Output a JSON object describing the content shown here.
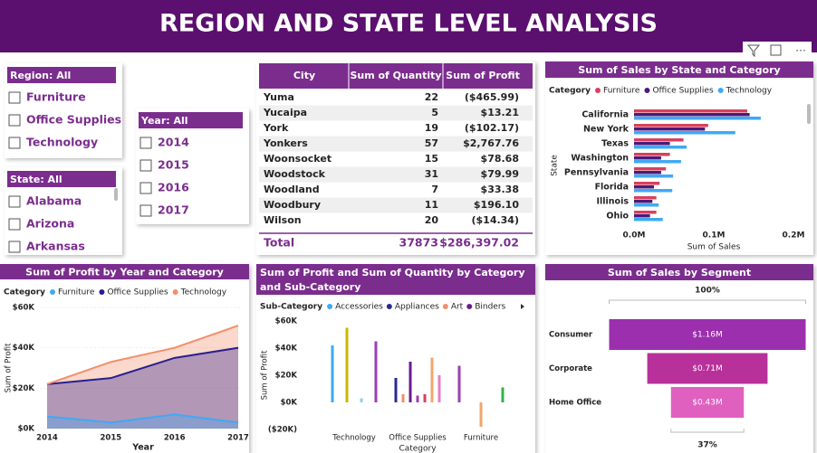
{
  "header": {
    "title": "REGION AND STATE LEVEL ANALYSIS"
  },
  "slicers": [
    {
      "title": "Region: All",
      "items": [
        "Furniture",
        "Office Supplies",
        "Technology"
      ]
    },
    {
      "title": "State: All",
      "items": [
        "Alabama",
        "Arizona",
        "Arkansas"
      ]
    },
    {
      "title": "Year: All",
      "items": [
        "2014",
        "2015",
        "2016",
        "2017"
      ]
    }
  ],
  "table": {
    "columns": [
      "City",
      "Sum of Quantity",
      "Sum of Profit"
    ],
    "rows": [
      [
        "Yuma",
        "22",
        "($465.99)"
      ],
      [
        "Yucaipa",
        "5",
        "$13.21"
      ],
      [
        "York",
        "19",
        "($102.17)"
      ],
      [
        "Yonkers",
        "57",
        "$2,767.76"
      ],
      [
        "Woonsocket",
        "15",
        "$78.68"
      ],
      [
        "Woodstock",
        "31",
        "$79.99"
      ],
      [
        "Woodland",
        "7",
        "$33.38"
      ],
      [
        "Woodbury",
        "11",
        "$196.10"
      ],
      [
        "Wilson",
        "20",
        "($14.34)"
      ]
    ],
    "total": [
      "Total",
      "37873",
      "$286,397.02"
    ]
  },
  "chart_data": [
    {
      "type": "hbar",
      "title": "Sum of Sales by State and Category",
      "legend_title": "Category",
      "x_label": "Sum of Sales",
      "y_label": "State",
      "categories": [
        "California",
        "New York",
        "Texas",
        "Washington",
        "Pennsylvania",
        "Florida",
        "Illinois",
        "Ohio"
      ],
      "series": [
        {
          "name": "Furniture",
          "color": "#d6405e",
          "values": [
            142000,
            93000,
            62000,
            45000,
            40000,
            32000,
            28000,
            28000
          ]
        },
        {
          "name": "Office Supplies",
          "color": "#4b1a7a",
          "values": [
            145000,
            89000,
            45000,
            34000,
            34000,
            25000,
            23000,
            20000
          ]
        },
        {
          "name": "Technology",
          "color": "#3fa9f5",
          "values": [
            159000,
            127000,
            66000,
            59000,
            49000,
            48000,
            31000,
            36000
          ]
        }
      ],
      "xlim": [
        0,
        200000
      ],
      "xticks": [
        {
          "value": 0,
          "label": "0.0M"
        },
        {
          "value": 100000,
          "label": "0.1M"
        },
        {
          "value": 200000,
          "label": "0.2M"
        }
      ],
      "grid": false
    },
    {
      "type": "area",
      "title": "Sum of Profit by Year and Category",
      "legend_title": "Category",
      "x_label": "Year",
      "y_label": "Sum of Profit",
      "categories": [
        "2014",
        "2015",
        "2016",
        "2017"
      ],
      "series": [
        {
          "name": "Furniture",
          "color": "#3fa9f5",
          "values": [
            6000,
            3000,
            7000,
            3000
          ]
        },
        {
          "name": "Office Supplies",
          "color": "#2a1f8f",
          "values": [
            22000,
            25000,
            35000,
            40000
          ]
        },
        {
          "name": "Technology",
          "color": "#f28e6b",
          "values": [
            22000,
            33000,
            40000,
            51000
          ]
        }
      ],
      "ylim": [
        0,
        60000
      ],
      "yticks": [
        {
          "value": 0,
          "label": "$0K"
        },
        {
          "value": 20000,
          "label": "$20K"
        },
        {
          "value": 40000,
          "label": "$40K"
        },
        {
          "value": 60000,
          "label": "$60K"
        }
      ],
      "grid": true
    },
    {
      "type": "column",
      "title": "Sum of Profit and Sum of Quantity by Category and Sub-Category",
      "legend_title": "Sub-Category",
      "x_label": "Category",
      "y_label": "Sum of Profit",
      "categories": [
        "Technology",
        "Office Supplies",
        "Furniture"
      ],
      "series": [
        {
          "name": "Accessories",
          "color": "#3fa9f5",
          "values": [
            42000,
            null,
            null
          ]
        },
        {
          "name": "Appliances",
          "color": "#2a2a8f",
          "values": [
            null,
            18000,
            null
          ]
        },
        {
          "name": "Art",
          "color": "#f28e6b",
          "values": [
            null,
            6000,
            null
          ]
        },
        {
          "name": "Binders",
          "color": "#6b1d8f",
          "values": [
            null,
            30000,
            null
          ]
        },
        {
          "color": "#c9b800",
          "values": [
            55000,
            null,
            null
          ]
        },
        {
          "color": "#8fd0f5",
          "values": [
            3000,
            null,
            null
          ]
        },
        {
          "color": "#9b3fb5",
          "values": [
            45000,
            5000,
            27000
          ]
        },
        {
          "color": "#d6405e",
          "values": [
            null,
            6000,
            null
          ]
        },
        {
          "color": "#f2a66b",
          "values": [
            null,
            33000,
            -18000
          ]
        },
        {
          "color": "#e77fc5",
          "values": [
            null,
            20000,
            null
          ]
        },
        {
          "color": "#2fb34a",
          "values": [
            null,
            null,
            11000
          ]
        }
      ],
      "ylim": [
        -20000,
        60000
      ],
      "yticks": [
        {
          "value": -20000,
          "label": "($20K)"
        },
        {
          "value": 0,
          "label": "$0K"
        },
        {
          "value": 20000,
          "label": "$20K"
        },
        {
          "value": 40000,
          "label": "$40K"
        },
        {
          "value": 60000,
          "label": "$60K"
        }
      ],
      "grid": false
    },
    {
      "type": "funnel",
      "title": "Sum of Sales by Segment",
      "categories": [
        "Consumer",
        "Corporate",
        "Home Office"
      ],
      "values": [
        1160000,
        710000,
        430000
      ],
      "value_labels": [
        "$1.16M",
        "$0.71M",
        "$0.43M"
      ],
      "colors": [
        "#9b2fae",
        "#b8309a",
        "#e060c0"
      ],
      "top_label": "100%",
      "bottom_label": "37%"
    }
  ]
}
